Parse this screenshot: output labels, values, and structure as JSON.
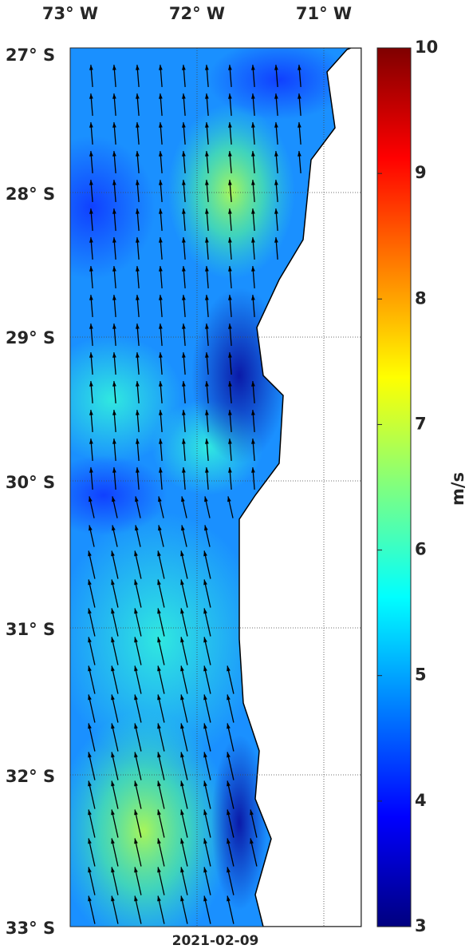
{
  "map": {
    "lon_labels": [
      "73° W",
      "72° W",
      "71° W"
    ],
    "lat_labels": [
      "27° S",
      "28° S",
      "29° S",
      "30° S",
      "31° S",
      "32° S",
      "33° S"
    ],
    "colorbar": {
      "ticks": [
        3,
        4,
        5,
        6,
        7,
        8,
        9,
        10
      ],
      "label": "m/s"
    },
    "date": "2021-02-09"
  }
}
